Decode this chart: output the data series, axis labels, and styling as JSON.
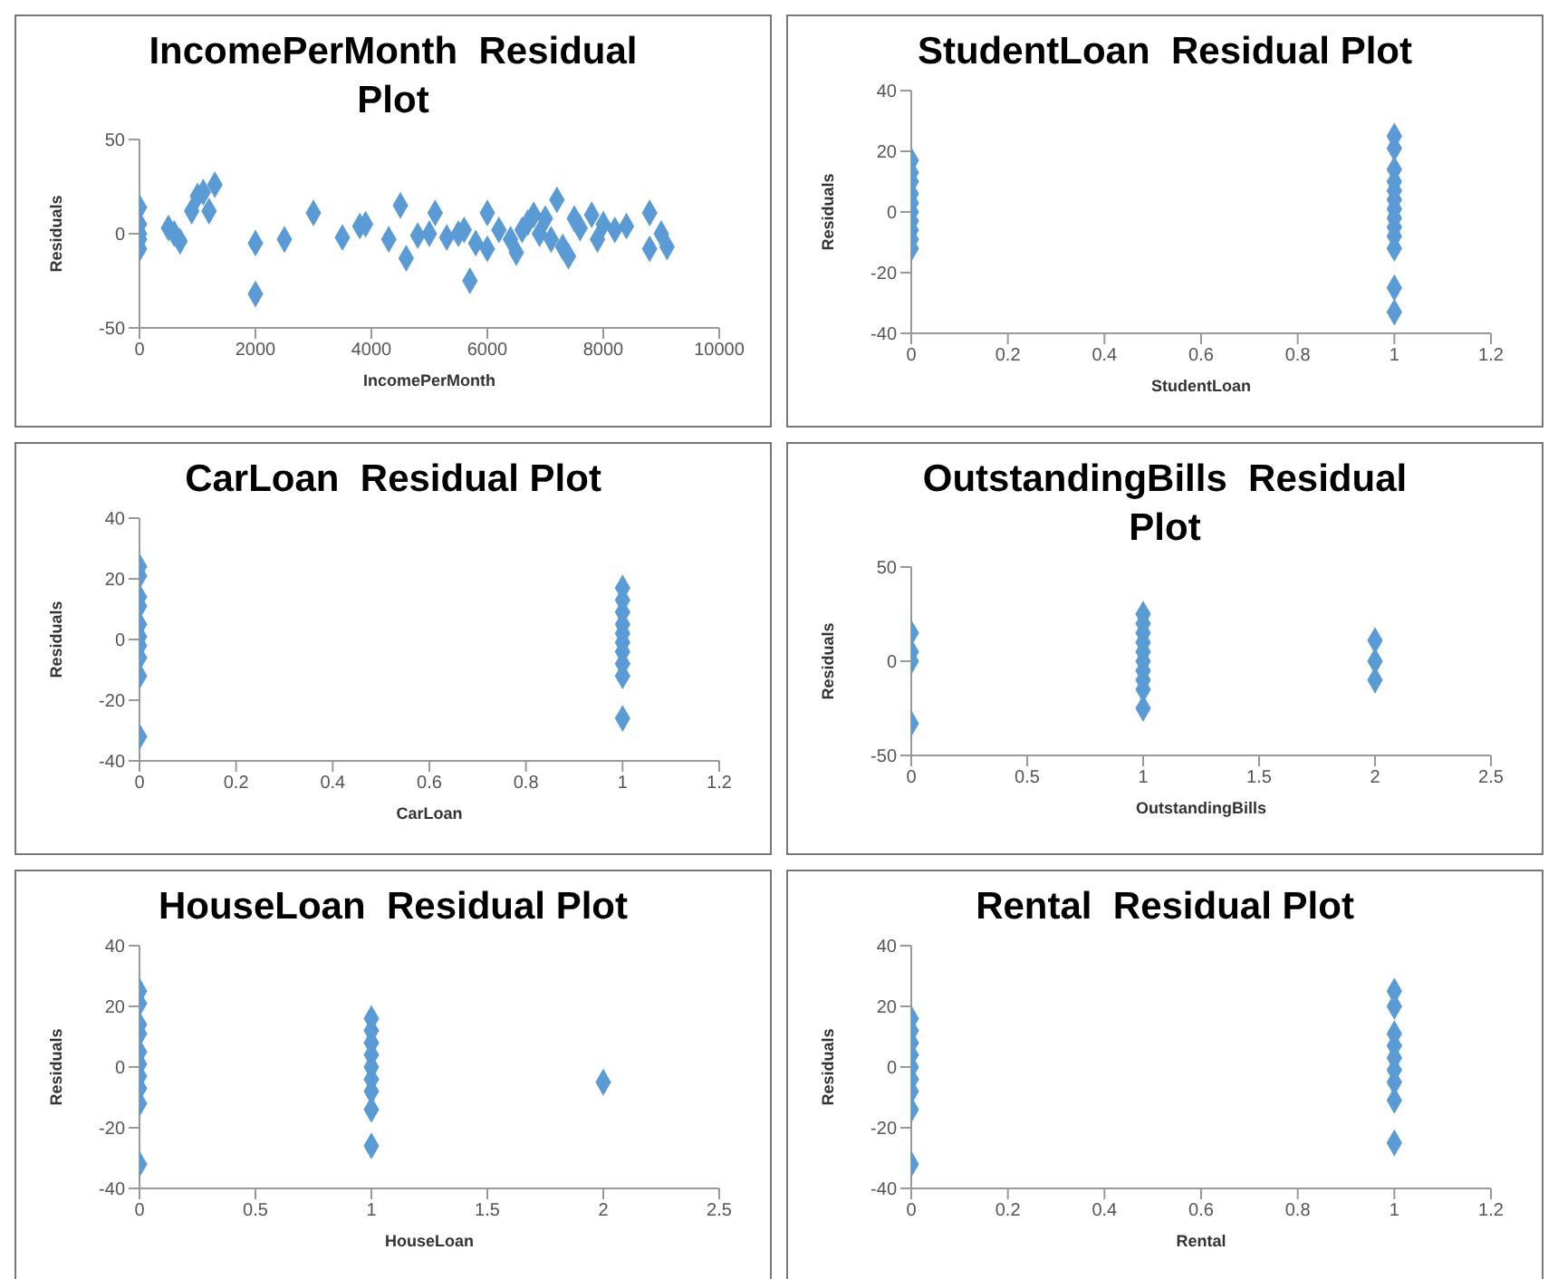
{
  "chart_data": [
    {
      "type": "scatter",
      "title": "IncomePerMonth  Residual Plot",
      "xlabel": "IncomePerMonth",
      "ylabel": "Residuals",
      "marker": "diamond",
      "grid": false,
      "legend": false,
      "xlim": [
        0,
        10000
      ],
      "xticks": [
        0,
        2000,
        4000,
        6000,
        8000,
        10000
      ],
      "ylim": [
        -50,
        50
      ],
      "yticks": [
        -50,
        0,
        50
      ],
      "series": [
        {
          "color": "#5b9bd5",
          "x": [
            0,
            0,
            0,
            0,
            0,
            500,
            600,
            700,
            900,
            1000,
            1100,
            1200,
            1300,
            2000,
            2000,
            2500,
            3000,
            3500,
            3800,
            3900,
            4300,
            4500,
            4600,
            4800,
            5000,
            5100,
            5300,
            5500,
            5600,
            5700,
            5800,
            6000,
            6000,
            6200,
            6400,
            6500,
            6600,
            6700,
            6800,
            6900,
            7000,
            7100,
            7200,
            7300,
            7400,
            7500,
            7600,
            7800,
            7900,
            8000,
            8200,
            8400,
            8800,
            8800,
            9000,
            9100
          ],
          "values": [
            14,
            5,
            0,
            -3,
            -8,
            3,
            0,
            -4,
            12,
            20,
            22,
            12,
            26,
            -5,
            -32,
            -3,
            11,
            -2,
            4,
            5,
            -3,
            15,
            -13,
            -1,
            0,
            11,
            -2,
            0,
            2,
            -25,
            -5,
            11,
            -8,
            2,
            -3,
            -10,
            2,
            6,
            10,
            0,
            8,
            -3,
            18,
            -7,
            -12,
            8,
            3,
            10,
            -3,
            5,
            2,
            4,
            11,
            -8,
            0,
            -7
          ]
        }
      ]
    },
    {
      "type": "scatter",
      "title": "StudentLoan  Residual Plot",
      "xlabel": "StudentLoan",
      "ylabel": "Residuals",
      "marker": "diamond",
      "grid": false,
      "legend": false,
      "xlim": [
        0,
        1.2
      ],
      "xticks": [
        0,
        0.2,
        0.4,
        0.6,
        0.8,
        1,
        1.2
      ],
      "ylim": [
        -40,
        40
      ],
      "yticks": [
        -40,
        -20,
        0,
        20,
        40
      ],
      "series": [
        {
          "color": "#5b9bd5",
          "x": [
            0,
            0,
            0,
            0,
            0,
            0,
            0,
            0,
            0,
            0,
            1,
            1,
            1,
            1,
            1,
            1,
            1,
            1,
            1,
            1,
            1,
            1,
            1
          ],
          "values": [
            17,
            13,
            10,
            6,
            3,
            0,
            -3,
            -6,
            -9,
            -12,
            25,
            21,
            14,
            10,
            7,
            4,
            1,
            -2,
            -5,
            -8,
            -12,
            -25,
            -33
          ]
        }
      ]
    },
    {
      "type": "scatter",
      "title": "CarLoan  Residual Plot",
      "xlabel": "CarLoan",
      "ylabel": "Residuals",
      "marker": "diamond",
      "grid": false,
      "legend": false,
      "xlim": [
        0,
        1.2
      ],
      "xticks": [
        0,
        0.2,
        0.4,
        0.6,
        0.8,
        1,
        1.2
      ],
      "ylim": [
        -40,
        40
      ],
      "yticks": [
        -40,
        -20,
        0,
        20,
        40
      ],
      "series": [
        {
          "color": "#5b9bd5",
          "x": [
            0,
            0,
            0,
            0,
            0,
            0,
            0,
            0,
            0,
            0,
            1,
            1,
            1,
            1,
            1,
            1,
            1,
            1,
            1,
            1
          ],
          "values": [
            24,
            21,
            14,
            11,
            5,
            1,
            -2,
            -6,
            -12,
            -32,
            17,
            13,
            9,
            5,
            2,
            -1,
            -4,
            -8,
            -12,
            -26
          ]
        }
      ]
    },
    {
      "type": "scatter",
      "title": "OutstandingBills  Residual Plot",
      "xlabel": "OutstandingBills",
      "ylabel": "Residuals",
      "marker": "diamond",
      "grid": false,
      "legend": false,
      "xlim": [
        0,
        2.5
      ],
      "xticks": [
        0,
        0.5,
        1,
        1.5,
        2,
        2.5
      ],
      "ylim": [
        -50,
        50
      ],
      "yticks": [
        -50,
        0,
        50
      ],
      "series": [
        {
          "color": "#5b9bd5",
          "x": [
            0,
            0,
            0,
            0,
            1,
            1,
            1,
            1,
            1,
            1,
            1,
            1,
            1,
            1,
            2,
            2,
            2
          ],
          "values": [
            15,
            5,
            0,
            -33,
            25,
            20,
            15,
            10,
            5,
            0,
            -5,
            -10,
            -15,
            -25,
            11,
            0,
            -10
          ]
        }
      ]
    },
    {
      "type": "scatter",
      "title": "HouseLoan  Residual Plot",
      "xlabel": "HouseLoan",
      "ylabel": "Residuals",
      "marker": "diamond",
      "grid": false,
      "legend": false,
      "xlim": [
        0,
        2.5
      ],
      "xticks": [
        0,
        0.5,
        1,
        1.5,
        2,
        2.5
      ],
      "ylim": [
        -40,
        40
      ],
      "yticks": [
        -40,
        -20,
        0,
        20,
        40
      ],
      "series": [
        {
          "color": "#5b9bd5",
          "x": [
            0,
            0,
            0,
            0,
            0,
            0,
            0,
            0,
            0,
            0,
            1,
            1,
            1,
            1,
            1,
            1,
            1,
            1,
            1,
            2
          ],
          "values": [
            25,
            21,
            14,
            11,
            5,
            1,
            -3,
            -7,
            -12,
            -32,
            16,
            12,
            8,
            4,
            0,
            -4,
            -8,
            -14,
            -26,
            -5
          ]
        }
      ]
    },
    {
      "type": "scatter",
      "title": "Rental  Residual Plot",
      "xlabel": "Rental",
      "ylabel": "Residuals",
      "marker": "diamond",
      "grid": false,
      "legend": false,
      "xlim": [
        0,
        1.2
      ],
      "xticks": [
        0,
        0.2,
        0.4,
        0.6,
        0.8,
        1,
        1.2
      ],
      "ylim": [
        -40,
        40
      ],
      "yticks": [
        -40,
        -20,
        0,
        20,
        40
      ],
      "series": [
        {
          "color": "#5b9bd5",
          "x": [
            0,
            0,
            0,
            0,
            0,
            0,
            0,
            0,
            0,
            1,
            1,
            1,
            1,
            1,
            1,
            1,
            1,
            1
          ],
          "values": [
            16,
            12,
            8,
            4,
            0,
            -4,
            -8,
            -14,
            -32,
            25,
            20,
            11,
            7,
            3,
            -1,
            -5,
            -11,
            -25
          ]
        }
      ]
    }
  ]
}
